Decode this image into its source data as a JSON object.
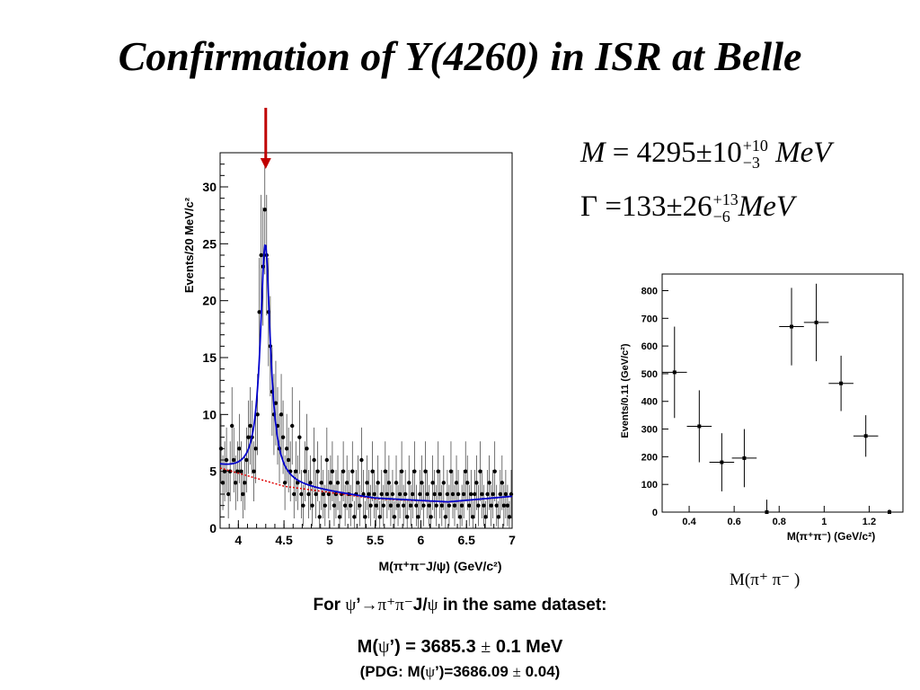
{
  "title": "Confirmation of Y(4260) in ISR at Belle",
  "formulas": {
    "mass": {
      "symbol": "M",
      "eq": "=",
      "value": "4295",
      "pm": "±",
      "err": "10",
      "err_up": "+10",
      "err_down": "−3",
      "unit": "MeV"
    },
    "width": {
      "symbol": "Γ",
      "eq": "=",
      "value": "133",
      "pm": "±",
      "err": "26",
      "err_up": "+13",
      "err_down": "−6",
      "unit": "MeV"
    }
  },
  "side_caption": "M(π⁺ π⁻ )",
  "caption": {
    "line1_a": "For ",
    "line1_psi": "ψ",
    "line1_b": "’",
    "line1_arrow": "→",
    "line1_decay": "π⁺π⁻",
    "line1_c": "J/",
    "line1_psi2": "ψ",
    "line1_d": " in the same dataset:",
    "line2_a": "M(",
    "line2_psi": "ψ",
    "line2_b": "’) = 3685.3 ",
    "line2_pm": "±",
    "line2_c": " 0.1 MeV",
    "line3_a": "(PDG:  M(",
    "line3_psi": "ψ",
    "line3_b": "’)=3686.09 ",
    "line3_pm": "±",
    "line3_c": " 0.04)"
  },
  "chart_data": [
    {
      "type": "scatter",
      "title": "",
      "xlabel": "M(π⁺π⁻J/ψ) (GeV/c²)",
      "ylabel": "Events/20 MeV/c²",
      "xlim": [
        3.8,
        7.0
      ],
      "ylim": [
        0,
        33
      ],
      "xticks": [
        4,
        4.5,
        5,
        5.5,
        6,
        6.5,
        7
      ],
      "xtick_labels": [
        "4",
        "4.5",
        "5",
        "5.5",
        "6",
        "6.5",
        "7"
      ],
      "yticks": [
        0,
        5,
        10,
        15,
        20,
        25,
        30
      ],
      "ytick_labels": [
        "0",
        "5",
        "10",
        "15",
        "20",
        "25",
        "30"
      ],
      "marker_arrow_x": 4.3,
      "marker_arrow_color": "#c00000",
      "fit_color": "#0000cc",
      "background_color": "#e00000",
      "fit": {
        "mass": 4.295,
        "width": 0.133,
        "peak_height": 20.8
      },
      "background": {
        "x": [
          3.8,
          4.5,
          5.5,
          6.3,
          7.0
        ],
        "y": [
          5.3,
          3.7,
          2.6,
          2.3,
          2.8
        ]
      },
      "series": [
        {
          "x": [
            3.81,
            3.83,
            3.85,
            3.87,
            3.89,
            3.91,
            3.93,
            3.95,
            3.97,
            3.99,
            4.01,
            4.03,
            4.05,
            4.07,
            4.09,
            4.11,
            4.13,
            4.15,
            4.17,
            4.19,
            4.21,
            4.23,
            4.25,
            4.27,
            4.29,
            4.31,
            4.33,
            4.35,
            4.37,
            4.39,
            4.41,
            4.43,
            4.45,
            4.47,
            4.49,
            4.51,
            4.53,
            4.55,
            4.57,
            4.59,
            4.61,
            4.63,
            4.65,
            4.67,
            4.69,
            4.71,
            4.73,
            4.75,
            4.77,
            4.79,
            4.81,
            4.83,
            4.85,
            4.87,
            4.89,
            4.91,
            4.93,
            4.95,
            4.97,
            4.99,
            5.01,
            5.03,
            5.05,
            5.07,
            5.09,
            5.11,
            5.13,
            5.15,
            5.17,
            5.19,
            5.21,
            5.23,
            5.25,
            5.27,
            5.29,
            5.31,
            5.33,
            5.35,
            5.37,
            5.39,
            5.41,
            5.43,
            5.45,
            5.47,
            5.49,
            5.51,
            5.53,
            5.55,
            5.57,
            5.59,
            5.61,
            5.63,
            5.65,
            5.67,
            5.69,
            5.71,
            5.73,
            5.75,
            5.77,
            5.79,
            5.81,
            5.83,
            5.85,
            5.87,
            5.89,
            5.91,
            5.93,
            5.95,
            5.97,
            5.99,
            6.01,
            6.03,
            6.05,
            6.07,
            6.09,
            6.11,
            6.13,
            6.15,
            6.17,
            6.19,
            6.21,
            6.23,
            6.25,
            6.27,
            6.29,
            6.31,
            6.33,
            6.35,
            6.37,
            6.39,
            6.41,
            6.43,
            6.45,
            6.47,
            6.49,
            6.51,
            6.53,
            6.55,
            6.57,
            6.59,
            6.61,
            6.63,
            6.65,
            6.67,
            6.69,
            6.71,
            6.73,
            6.75,
            6.77,
            6.79,
            6.81,
            6.83,
            6.85,
            6.87,
            6.89,
            6.91,
            6.93,
            6.95,
            6.97,
            6.99
          ],
          "y": [
            7,
            4,
            5,
            6,
            3,
            5,
            9,
            6,
            4,
            5,
            7,
            5,
            3,
            4,
            6,
            8,
            9,
            8,
            5,
            7,
            10,
            19,
            24,
            23,
            28,
            24,
            19,
            16,
            12,
            10,
            11,
            9,
            7,
            10,
            8,
            4,
            7,
            6,
            5,
            9,
            3,
            5,
            4,
            8,
            3,
            2,
            5,
            7,
            3,
            4,
            2,
            6,
            3,
            5,
            1,
            4,
            3,
            2,
            6,
            3,
            4,
            5,
            2,
            3,
            4,
            1,
            3,
            5,
            2,
            4,
            3,
            2,
            5,
            1,
            3,
            4,
            2,
            6,
            3,
            1,
            4,
            3,
            2,
            5,
            3,
            2,
            4,
            1,
            3,
            2,
            5,
            3,
            4,
            2,
            3,
            1,
            4,
            2,
            3,
            5,
            2,
            3,
            1,
            4,
            2,
            3,
            5,
            2,
            1,
            3,
            4,
            2,
            5,
            3,
            2,
            1,
            4,
            3,
            2,
            5,
            3,
            2,
            4,
            1,
            3,
            2,
            5,
            3,
            2,
            4,
            3,
            1,
            2,
            3,
            5,
            4,
            2,
            3,
            1,
            3,
            4,
            2,
            5,
            3,
            2,
            1,
            3,
            4,
            2,
            3,
            5,
            2,
            1,
            3,
            4,
            2,
            3,
            2,
            1,
            3
          ]
        }
      ]
    },
    {
      "type": "scatter",
      "title": "",
      "xlabel": "M(π⁺π⁻) (GeV/c²)",
      "ylabel": "Events/0.11 (GeV/c²)",
      "xlim": [
        0.28,
        1.35
      ],
      "ylim": [
        0,
        860
      ],
      "xticks": [
        0.4,
        0.6,
        0.8,
        1.0,
        1.2
      ],
      "xtick_labels": [
        "0.4",
        "0.6",
        "0.8",
        "1",
        "1.2"
      ],
      "yticks": [
        0,
        100,
        200,
        300,
        400,
        500,
        600,
        700,
        800
      ],
      "ytick_labels": [
        "0",
        "100",
        "200",
        "300",
        "400",
        "500",
        "600",
        "700",
        "800"
      ],
      "bin_half_width": 0.055,
      "series": [
        {
          "x": [
            0.335,
            0.445,
            0.545,
            0.645,
            0.745,
            0.855,
            0.965,
            1.075,
            1.185,
            1.29
          ],
          "y": [
            505,
            310,
            180,
            195,
            0,
            670,
            685,
            465,
            275,
            0
          ],
          "yerr": [
            165,
            130,
            105,
            105,
            45,
            140,
            140,
            100,
            75,
            10
          ]
        }
      ]
    }
  ]
}
